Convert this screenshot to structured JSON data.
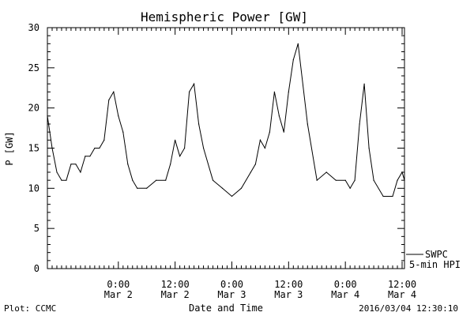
{
  "chart_data": {
    "type": "line",
    "title": "Hemispheric Power [GW]",
    "xlabel": "Date and Time",
    "ylabel": "P [GW]",
    "ylim": [
      0,
      30
    ],
    "xlim": [
      "2016-03-01T09:00",
      "2016-03-04T12:30"
    ],
    "yticks": [
      "0",
      "5",
      "10",
      "15",
      "20",
      "25",
      "30"
    ],
    "xticks": [
      {
        "time": "2016-03-02T00:00",
        "line1": "0:00",
        "line2": "Mar 2"
      },
      {
        "time": "2016-03-02T12:00",
        "line1": "12:00",
        "line2": "Mar 2"
      },
      {
        "time": "2016-03-03T00:00",
        "line1": "0:00",
        "line2": "Mar 3"
      },
      {
        "time": "2016-03-03T12:00",
        "line1": "12:00",
        "line2": "Mar 3"
      },
      {
        "time": "2016-03-04T00:00",
        "line1": "0:00",
        "line2": "Mar 4"
      },
      {
        "time": "2016-03-04T12:00",
        "line1": "12:00",
        "line2": "Mar 4"
      }
    ],
    "grid": false,
    "legend": {
      "position": "bottom-right",
      "line1": "SWPC",
      "line2": "5-min HPI"
    },
    "series": [
      {
        "name": "SWPC 5-min HPI",
        "color": "#000000",
        "x": [
          "2016-03-01T09:00",
          "2016-03-01T10:00",
          "2016-03-01T11:00",
          "2016-03-01T12:00",
          "2016-03-01T13:00",
          "2016-03-01T14:00",
          "2016-03-01T15:00",
          "2016-03-01T16:00",
          "2016-03-01T17:00",
          "2016-03-01T18:00",
          "2016-03-01T19:00",
          "2016-03-01T20:00",
          "2016-03-01T21:00",
          "2016-03-01T22:00",
          "2016-03-01T23:00",
          "2016-03-02T00:00",
          "2016-03-02T01:00",
          "2016-03-02T02:00",
          "2016-03-02T03:00",
          "2016-03-02T04:00",
          "2016-03-02T06:00",
          "2016-03-02T08:00",
          "2016-03-02T10:00",
          "2016-03-02T11:00",
          "2016-03-02T12:00",
          "2016-03-02T13:00",
          "2016-03-02T14:00",
          "2016-03-02T15:00",
          "2016-03-02T16:00",
          "2016-03-02T17:00",
          "2016-03-02T18:00",
          "2016-03-02T20:00",
          "2016-03-02T22:00",
          "2016-03-03T00:00",
          "2016-03-03T02:00",
          "2016-03-03T04:00",
          "2016-03-03T05:00",
          "2016-03-03T06:00",
          "2016-03-03T07:00",
          "2016-03-03T08:00",
          "2016-03-03T09:00",
          "2016-03-03T10:00",
          "2016-03-03T11:00",
          "2016-03-03T12:00",
          "2016-03-03T13:00",
          "2016-03-03T14:00",
          "2016-03-03T16:00",
          "2016-03-03T18:00",
          "2016-03-03T20:00",
          "2016-03-03T22:00",
          "2016-03-04T00:00",
          "2016-03-04T01:00",
          "2016-03-04T02:00",
          "2016-03-04T03:00",
          "2016-03-04T04:00",
          "2016-03-04T05:00",
          "2016-03-04T06:00",
          "2016-03-04T08:00",
          "2016-03-04T10:00",
          "2016-03-04T11:00",
          "2016-03-04T12:00",
          "2016-03-04T12:30"
        ],
        "y": [
          19,
          15,
          12,
          11,
          11,
          13,
          13,
          12,
          14,
          14,
          15,
          15,
          16,
          21,
          22,
          19,
          17,
          13,
          11,
          10,
          10,
          11,
          11,
          13,
          16,
          14,
          15,
          22,
          23,
          18,
          15,
          11,
          10,
          9,
          10,
          12,
          13,
          16,
          15,
          17,
          22,
          19,
          17,
          22,
          26,
          28,
          18,
          11,
          12,
          11,
          11,
          10,
          11,
          18,
          23,
          15,
          11,
          9,
          9,
          11,
          12,
          11
        ]
      }
    ]
  },
  "footer": {
    "left": "Plot: CCMC",
    "right": "2016/03/04 12:30:10"
  }
}
